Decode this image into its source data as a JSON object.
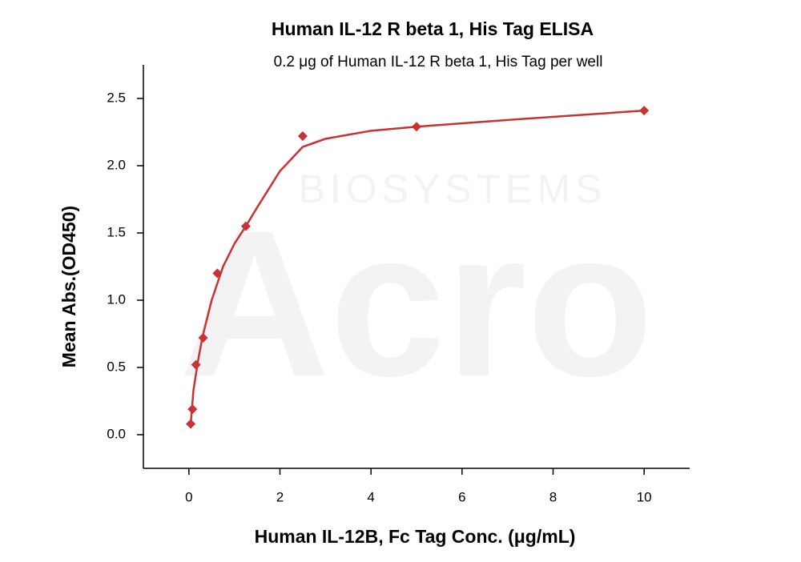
{
  "chart_data": {
    "type": "scatter",
    "title": "Human IL-12 R beta 1, His Tag ELISA",
    "subtitle": "0.2 μg of Human IL-12 R beta 1, His Tag per well",
    "x_label": "Human IL-12B, Fc Tag Conc. (μg/mL)",
    "y_label": "Mean Abs.(OD450)",
    "watermark": [
      "Acro",
      "BIOSYSTEMS"
    ],
    "xlim": [
      -1,
      11
    ],
    "xticks": [
      0,
      2,
      4,
      6,
      8,
      10
    ],
    "ylim": [
      -0.25,
      2.75
    ],
    "yticks": [
      {
        "value": 0,
        "label": "0.0"
      },
      0.5,
      {
        "value": 1,
        "label": "1.0"
      },
      1.5,
      {
        "value": 2,
        "label": "2.0"
      },
      2.5
    ],
    "grid": false,
    "series": [
      {
        "style": "markers",
        "marker": "diamond",
        "color": "#c83232",
        "x": [
          0.039,
          0.078,
          0.156,
          0.3125,
          0.625,
          1.25,
          2.5,
          5,
          10
        ],
        "values": [
          0.08,
          0.19,
          0.52,
          0.72,
          1.2,
          1.55,
          2.22,
          2.29,
          2.41
        ]
      },
      {
        "style": "line",
        "color": "#c83232",
        "x": [
          0.04,
          0.1,
          0.2,
          0.3,
          0.5,
          0.75,
          1.0,
          1.25,
          1.5,
          2.0,
          2.5,
          3.0,
          4.0,
          5.0,
          7.0,
          10
        ],
        "values": [
          0.08,
          0.33,
          0.55,
          0.73,
          1.0,
          1.25,
          1.42,
          1.55,
          1.69,
          1.96,
          2.14,
          2.2,
          2.26,
          2.29,
          2.34,
          2.41
        ]
      }
    ]
  }
}
